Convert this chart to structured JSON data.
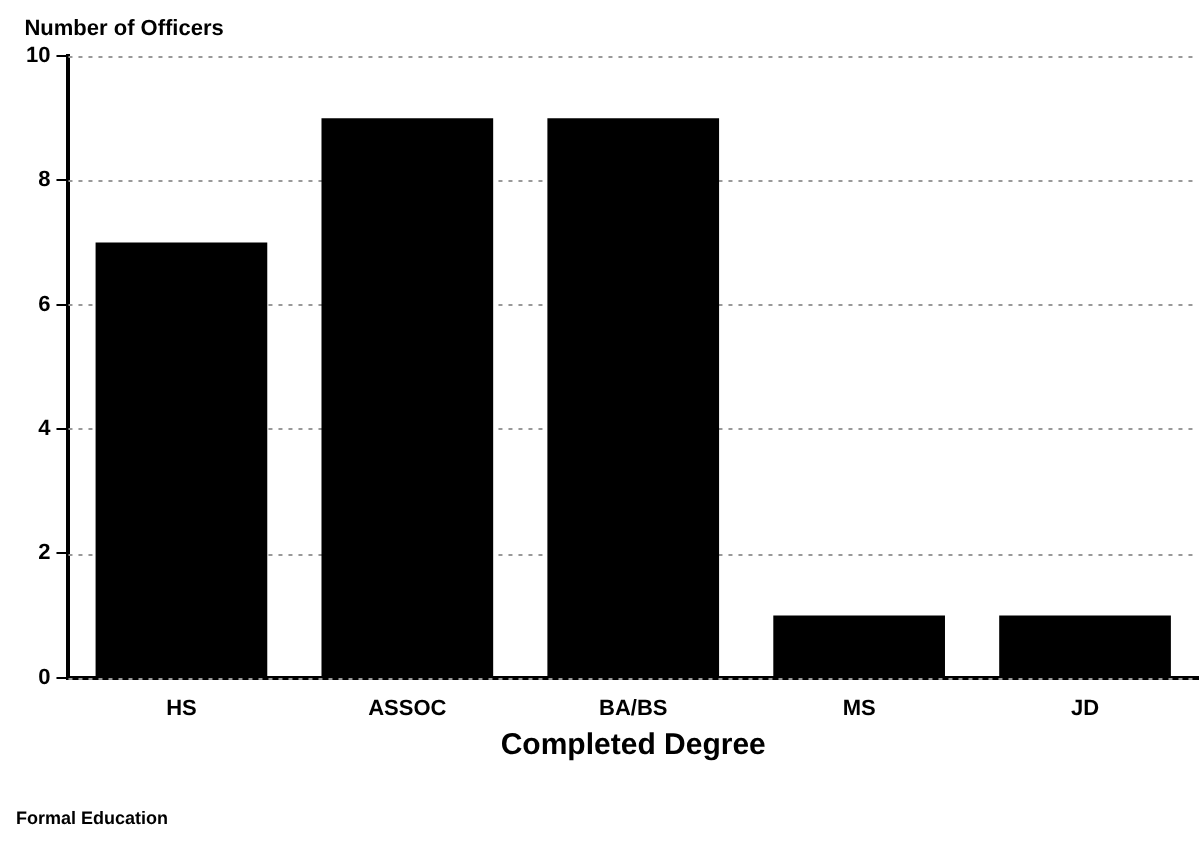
{
  "chart_data": {
    "type": "bar",
    "ylabel": "Number of Officers",
    "xlabel": "Completed Degree",
    "categories": [
      "HS",
      "ASSOC",
      "BA/BS",
      "MS",
      "JD"
    ],
    "values": [
      7,
      9,
      9,
      1,
      1
    ],
    "color": "#000000",
    "ylim": [
      0,
      10
    ],
    "yticks": [
      0,
      2,
      4,
      6,
      8,
      10
    ],
    "grid": "y",
    "legend": false,
    "annotations": [
      "Formal Education"
    ]
  }
}
